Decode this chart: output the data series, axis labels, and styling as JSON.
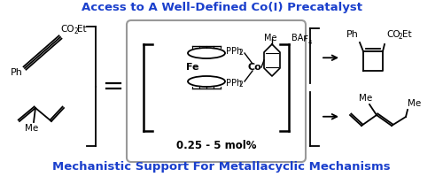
{
  "title_top": "Access to A Well-Defined Co(I) Precatalyst",
  "title_bottom": "Mechanistic Support For Metallacyclic Mechanisms",
  "title_color": "#1a3fcc",
  "title_fontsize": 9.5,
  "bg_color": "#ffffff",
  "box_text": "0.25 - 5 mol%",
  "figsize": [
    5.0,
    2.0
  ],
  "dpi": 100
}
